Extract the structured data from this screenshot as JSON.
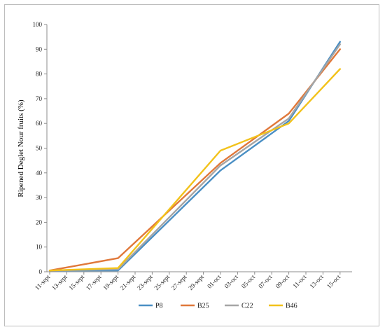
{
  "chart_data": {
    "type": "line",
    "title": "",
    "xlabel": "",
    "ylabel": "Ripened Deglet Nour fruits (%)",
    "ylim": [
      0,
      100
    ],
    "yticks": [
      0,
      10,
      20,
      30,
      40,
      50,
      60,
      70,
      80,
      90,
      100
    ],
    "categories": [
      "11-sept",
      "13-sept",
      "15-sept",
      "17-sept",
      "19-sept",
      "21-sept",
      "23-sept",
      "25-sept",
      "27-sept",
      "29-sept",
      "01-oct",
      "03-oct",
      "05-oct",
      "07-oct",
      "09-oct",
      "11-oct",
      "13-oct",
      "15-oct"
    ],
    "x_positions": [
      0,
      1,
      2,
      3,
      4,
      5,
      6,
      7,
      8,
      9,
      10,
      11,
      12,
      13,
      14,
      15,
      16,
      17
    ],
    "grid": false,
    "legend_position": "bottom",
    "series": [
      {
        "name": "P8",
        "color": "#4a8fc4",
        "points": [
          [
            0,
            0.5
          ],
          [
            4,
            0.5
          ],
          [
            10,
            41
          ],
          [
            14,
            61
          ],
          [
            17,
            93
          ]
        ]
      },
      {
        "name": "B25",
        "color": "#e0783a",
        "points": [
          [
            0,
            0.5
          ],
          [
            4,
            5.5
          ],
          [
            10,
            44
          ],
          [
            14,
            64
          ],
          [
            17,
            90
          ]
        ]
      },
      {
        "name": "C22",
        "color": "#a5a5a5",
        "points": [
          [
            0,
            0.5
          ],
          [
            4,
            1
          ],
          [
            10,
            43
          ],
          [
            14,
            62
          ],
          [
            17,
            92
          ]
        ]
      },
      {
        "name": "B46",
        "color": "#f2c21b",
        "points": [
          [
            0,
            0.5
          ],
          [
            4,
            1.5
          ],
          [
            10,
            49
          ],
          [
            14,
            60
          ],
          [
            17,
            82
          ]
        ]
      }
    ]
  }
}
